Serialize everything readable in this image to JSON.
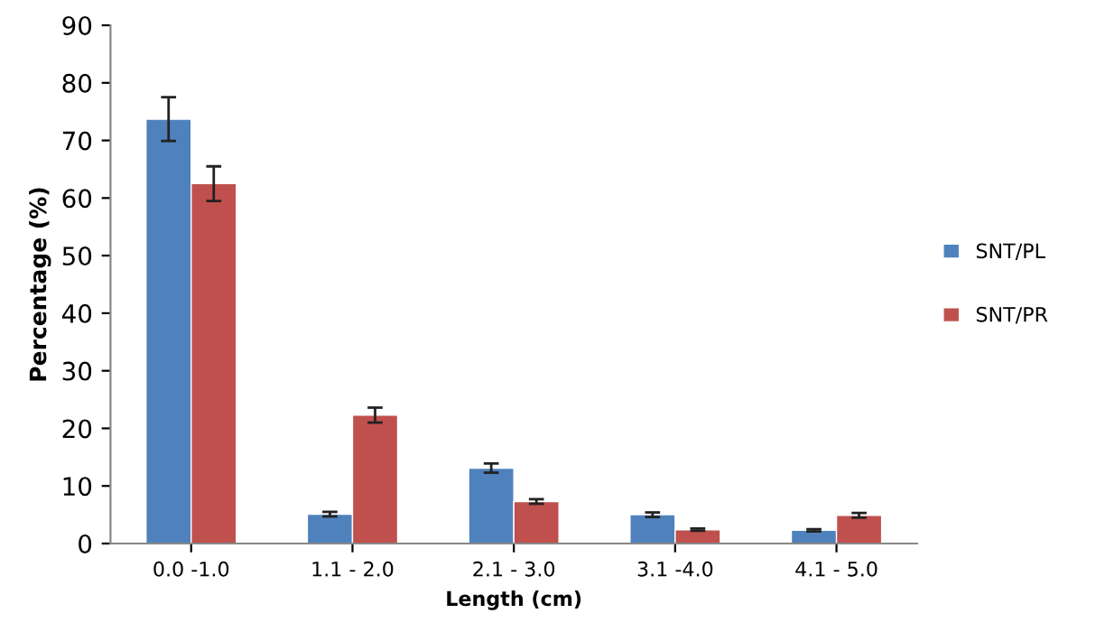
{
  "chart_data": {
    "type": "bar",
    "xlabel": "Length (cm)",
    "ylabel": "Percentage (%)",
    "categories": [
      "0.0 -1.0",
      "1.1 - 2.0",
      "2.1 - 3.0",
      "3.1 -4.0",
      "4.1 - 5.0"
    ],
    "series": [
      {
        "name": "SNT/PL",
        "color": "#4f81bd",
        "values": [
          73.7,
          5.1,
          13.1,
          5.0,
          2.3
        ],
        "errors": [
          3.8,
          0.4,
          0.8,
          0.4,
          0.2
        ]
      },
      {
        "name": "SNT/PR",
        "color": "#c0504d",
        "values": [
          62.5,
          22.3,
          7.3,
          2.4,
          4.9
        ],
        "errors": [
          3.0,
          1.3,
          0.4,
          0.2,
          0.4
        ]
      }
    ],
    "ylim": [
      0,
      90
    ],
    "yticks": [
      0,
      10,
      20,
      30,
      40,
      50,
      60,
      70,
      80,
      90
    ],
    "grid": false,
    "legend": "right"
  }
}
